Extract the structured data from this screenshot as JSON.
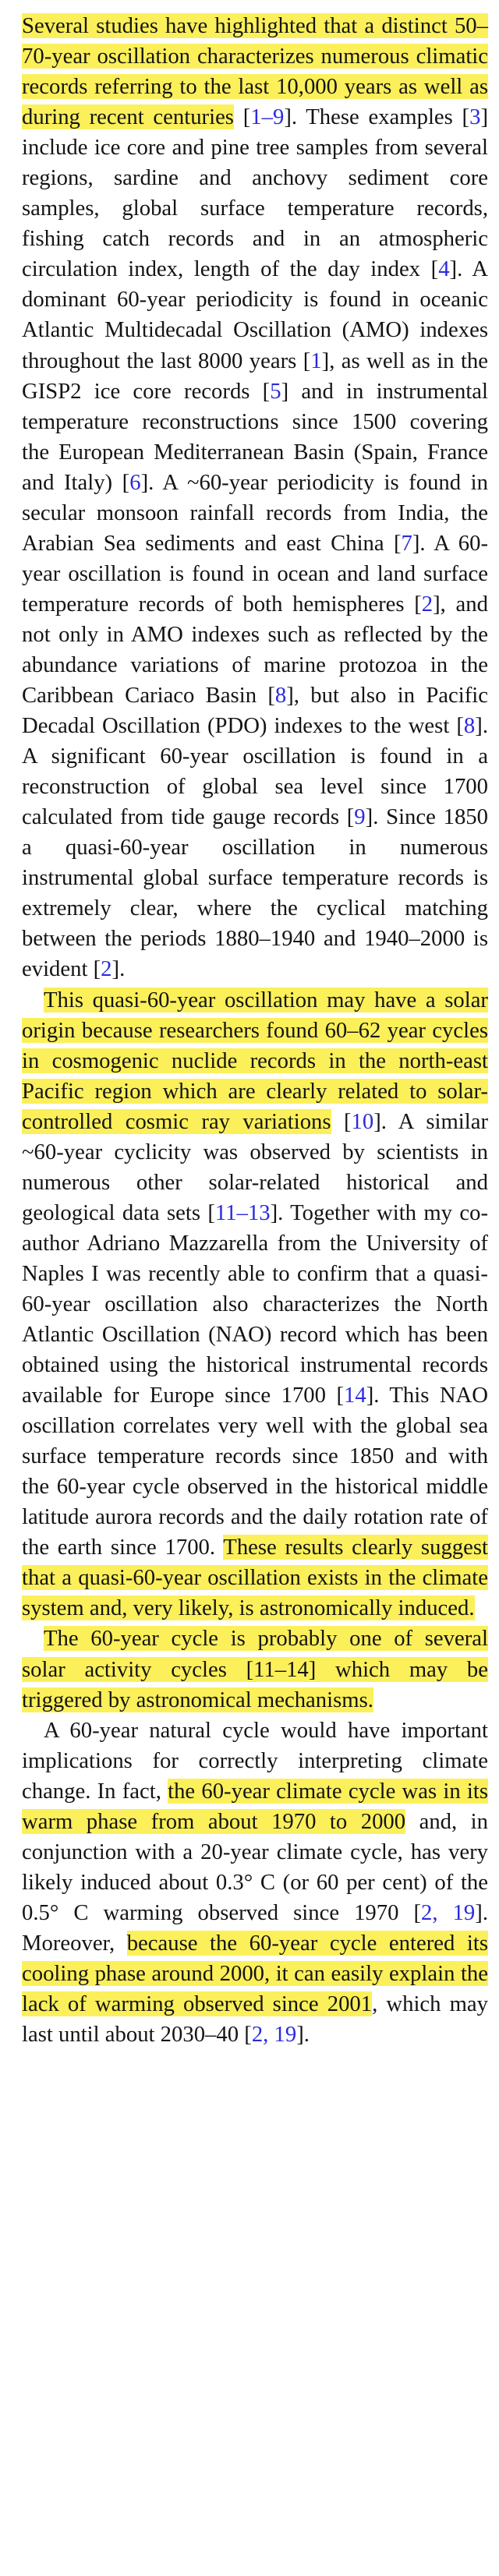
{
  "highlight_color": "#fbf05a",
  "reference_link_color": "#2a2ae0",
  "paragraphs": [
    {
      "indent": false,
      "segments": [
        {
          "text": "Several studies have highlighted that a distinct 50–70-year oscillation characterizes numerous climatic records referring to the last 10,000 years as well as during recent centuries",
          "hl": true
        },
        {
          "text": " ["
        },
        {
          "text": "1–9",
          "ref": true
        },
        {
          "text": "]. These examples ["
        },
        {
          "text": "3",
          "ref": true
        },
        {
          "text": "] include ice core and pine tree samples from several regions, sardine and anchovy sediment core samples, global surface temperature records, fishing catch records and in an atmospheric circulation index, length of the day index ["
        },
        {
          "text": "4",
          "ref": true
        },
        {
          "text": "]. A dominant 60-year periodicity is found in oceanic Atlantic Multidecadal Oscillation (AMO) indexes throughout the last 8000 years ["
        },
        {
          "text": "1",
          "ref": true
        },
        {
          "text": "], as well as in the GISP2 ice core records ["
        },
        {
          "text": "5",
          "ref": true
        },
        {
          "text": "] and in instrumental temperature reconstructions since 1500 covering the European Mediterranean Basin (Spain, France and Italy) ["
        },
        {
          "text": "6",
          "ref": true
        },
        {
          "text": "]. A ~60-year periodicity is found in secular monsoon rainfall records from India, the Arabian Sea sediments and east China ["
        },
        {
          "text": "7",
          "ref": true
        },
        {
          "text": "]. A 60-year oscillation is found in ocean and land surface temperature records of both hemispheres ["
        },
        {
          "text": "2",
          "ref": true
        },
        {
          "text": "], and not only in AMO indexes such as reflected by the abundance variations of marine protozoa in the Caribbean Cariaco Basin ["
        },
        {
          "text": "8",
          "ref": true
        },
        {
          "text": "], but also in Pacific Decadal Oscillation (PDO) indexes to the west ["
        },
        {
          "text": "8",
          "ref": true
        },
        {
          "text": "]. A significant 60-year oscillation is found in a reconstruction of global sea level since 1700 calculated from tide gauge records ["
        },
        {
          "text": "9",
          "ref": true
        },
        {
          "text": "]. Since 1850 a quasi-60-year oscillation in numerous instrumental global surface temperature records is extremely clear, where the cyclical matching between the periods 1880–1940 and 1940–2000 is evident ["
        },
        {
          "text": "2",
          "ref": true
        },
        {
          "text": "]."
        }
      ]
    },
    {
      "indent": true,
      "segments": [
        {
          "text": "This quasi-60-year oscillation may have a solar origin because researchers found 60–62 year cycles in cosmogenic nuclide records in the north-east Pacific region which are clearly related to solar-controlled cosmic ray variations",
          "hl": true
        },
        {
          "text": " ["
        },
        {
          "text": "10",
          "ref": true
        },
        {
          "text": "]. A similar ~60-year cyclicity was observed by scientists in numerous other solar-related historical and geological data sets ["
        },
        {
          "text": "11–13",
          "ref": true
        },
        {
          "text": "]. Together with my co-author Adriano Mazzarella from the University of Naples I was recently able to confirm that a quasi-60-year oscillation also characterizes the North Atlantic Oscillation (NAO) record which has been obtained using the historical instrumental records available for Europe since 1700 ["
        },
        {
          "text": "14",
          "ref": true
        },
        {
          "text": "]. This NAO oscillation correlates very well with the global sea surface temperature records since 1850 and with the 60-year cycle observed in the historical middle latitude aurora records and the daily rotation rate of the earth since 1700. "
        },
        {
          "text": "These results clearly suggest that a quasi-60-year oscillation exists in the climate system and, very likely, is astronomically induced.",
          "hl": true
        }
      ]
    },
    {
      "indent": true,
      "segments": [
        {
          "text": "The 60-year cycle is probably one of several solar activity cycles [11–14] which may be triggered by astronomical mechanisms.",
          "hl": true
        }
      ]
    },
    {
      "indent": true,
      "segments": [
        {
          "text": "A 60-year natural cycle would have important implications for correctly interpreting climate change. In fact, "
        },
        {
          "text": "the 60-year climate cycle was in its warm phase from about 1970 to 2000",
          "hl": true
        },
        {
          "text": " and, in conjunction with a 20-year climate cycle, has very likely induced about 0.3° C (or 60 per cent) of the 0.5° C warming observed since 1970 ["
        },
        {
          "text": "2, 19",
          "ref": true
        },
        {
          "text": "]. Moreover, "
        },
        {
          "text": "because the 60-year cycle entered its cooling phase around 2000, it can easily explain the lack of warming observed since 2001",
          "hl": true
        },
        {
          "text": ", which may last until about 2030–40 ["
        },
        {
          "text": "2, 19",
          "ref": true
        },
        {
          "text": "]."
        }
      ]
    }
  ]
}
